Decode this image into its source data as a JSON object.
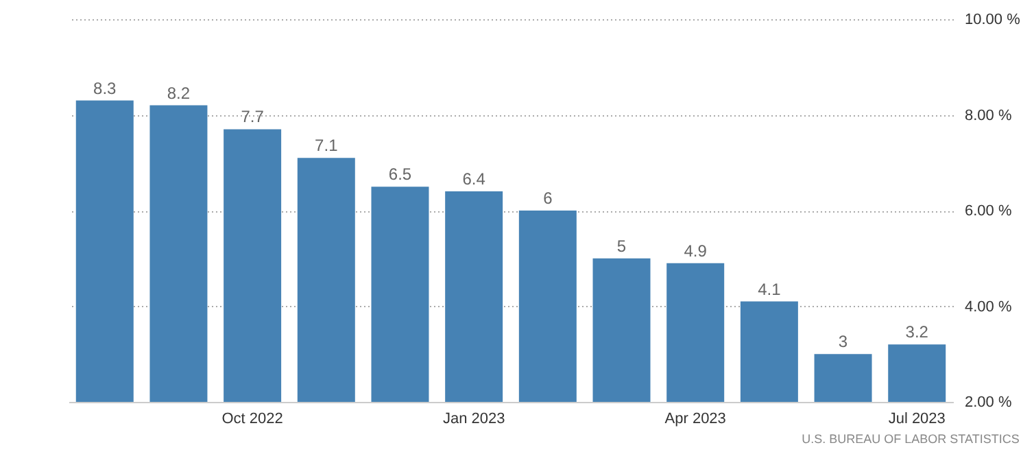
{
  "chart_data": {
    "type": "bar",
    "categories": [
      null,
      null,
      "Oct 2022",
      null,
      null,
      "Jan 2023",
      null,
      null,
      "Apr 2023",
      null,
      null,
      "Jul 2023"
    ],
    "values": [
      8.3,
      8.2,
      7.7,
      7.1,
      6.5,
      6.4,
      6,
      5,
      4.9,
      4.1,
      3,
      3.2
    ],
    "color": "#4682b4",
    "ylim": [
      2,
      10
    ],
    "yticks": [
      {
        "value": 2,
        "label": "2.00 %"
      },
      {
        "value": 4,
        "label": "4.00 %"
      },
      {
        "value": 6,
        "label": "6.00 %"
      },
      {
        "value": 8,
        "label": "8.00 %"
      },
      {
        "value": 10,
        "label": "10.00 %"
      }
    ],
    "grid": "y",
    "data_labels": true,
    "annotations": [
      "U.S. BUREAU OF LABOR STATISTICS"
    ]
  }
}
